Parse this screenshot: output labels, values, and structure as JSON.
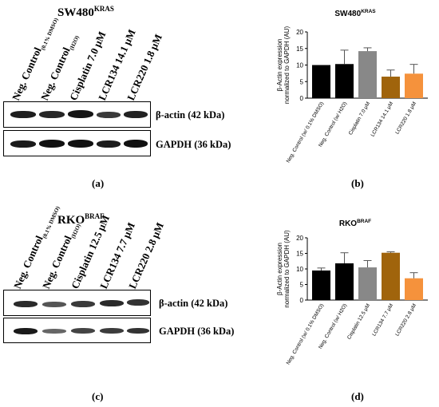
{
  "panel_a": {
    "title_main": "SW480",
    "title_sup": "KRAS",
    "lanes": [
      {
        "main": "Neg. Control",
        "sub": "(0.1% DMSO)"
      },
      {
        "main": "Neg. Control",
        "sub": "(H2O)"
      },
      {
        "main": "Cisplatin 7.0 μM",
        "sub": ""
      },
      {
        "main": "LCR134 14.1 μM",
        "sub": ""
      },
      {
        "main": "LCR220 1.8 μM",
        "sub": ""
      }
    ],
    "band1_label": "β-actin (42 kDa)",
    "band2_label": "GAPDH (36 kDa)",
    "letter": "(a)"
  },
  "panel_c": {
    "title_main": "RKO",
    "title_sup": "BRAF",
    "lanes": [
      {
        "main": "Neg. Control",
        "sub": "(0.1% DMSO)"
      },
      {
        "main": "Neg. Control",
        "sub": "(H2O)"
      },
      {
        "main": "Cisplatin 12.5 μM",
        "sub": ""
      },
      {
        "main": "LCR134 7.7 μM",
        "sub": ""
      },
      {
        "main": "LCR220 2.8 μM",
        "sub": ""
      }
    ],
    "band1_label": "β-actin (42 kDa)",
    "band2_label": "GAPDH (36 kDa)",
    "letter": "(c)"
  },
  "panel_b": {
    "letter": "(b)"
  },
  "panel_d": {
    "letter": "(d)"
  },
  "chart_data": [
    {
      "type": "bar",
      "title": "SW480",
      "title_sup": "KRAS",
      "ylabel": "β-Actin expression normalized to GAPDH (AU)",
      "ylim": [
        0,
        20
      ],
      "yticks": [
        0,
        5,
        10,
        15,
        20
      ],
      "categories": [
        "Neg. Control (w/ 0.1% DMSO)",
        "Neg. Control (w/ H2O)",
        "Cisplatin 7.0 μM",
        "LCR134 14.1 μM",
        "LCR220 1.8 μM"
      ],
      "values": [
        10.0,
        10.3,
        14.2,
        6.5,
        7.4
      ],
      "errors": [
        0,
        4.2,
        1.0,
        2.0,
        2.8
      ],
      "colors": [
        "#000000",
        "#000000",
        "#888888",
        "#a0640c",
        "#f5923c"
      ]
    },
    {
      "type": "bar",
      "title": "RKO",
      "title_sup": "BRAF",
      "ylabel": "β-Actin expression normalized to GAPDH (AU)",
      "ylim": [
        0,
        20
      ],
      "yticks": [
        0,
        5,
        10,
        15,
        20
      ],
      "categories": [
        "Neg. Control (w/ 0.1% DMSO)",
        "Neg. Control (w/ H2O)",
        "Cisplatin 12.5 μM",
        "LCR134 7.7 μM",
        "LCR220 2.8 μM"
      ],
      "values": [
        9.5,
        11.8,
        10.5,
        15.2,
        7.0
      ],
      "errors": [
        0.8,
        3.4,
        2.2,
        0.3,
        1.8
      ],
      "colors": [
        "#000000",
        "#000000",
        "#888888",
        "#a0640c",
        "#f5923c"
      ]
    }
  ]
}
